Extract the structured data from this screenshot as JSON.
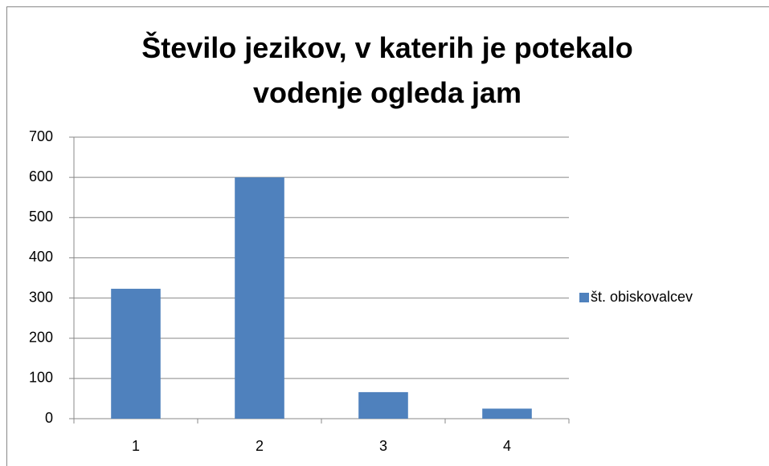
{
  "chart_data": {
    "type": "bar",
    "title": "Število jezikov, v katerih je potekalo vodenje ogleda jam",
    "categories": [
      "1",
      "2",
      "3",
      "4"
    ],
    "series": [
      {
        "name": "št. obiskovalcev",
        "color": "#4f81bd",
        "values": [
          323,
          600,
          66,
          25
        ]
      }
    ],
    "ylim": [
      0,
      700
    ],
    "yticks": [
      0,
      100,
      200,
      300,
      400,
      500,
      600,
      700
    ],
    "grid": true,
    "legend": "right"
  }
}
